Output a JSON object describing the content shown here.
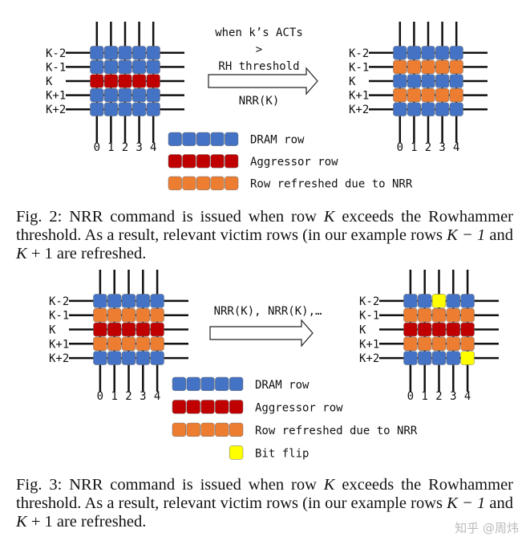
{
  "colors": {
    "dram": "#4472c4",
    "aggressor": "#c00000",
    "refreshed": "#ed7d31",
    "bitflip": "#ffff00",
    "line": "#111111"
  },
  "row_labels": [
    "K-2",
    "K-1",
    "K",
    "K+1",
    "K+2"
  ],
  "col_labels": [
    "0",
    "1",
    "2",
    "3",
    "4"
  ],
  "fig2": {
    "arrow_text": [
      "when k’s ACTs",
      ">",
      "RH threshold"
    ],
    "arrow_below": "NRR(K)",
    "left_grid": [
      [
        "D",
        "D",
        "D",
        "D",
        "D"
      ],
      [
        "D",
        "D",
        "D",
        "D",
        "D"
      ],
      [
        "A",
        "A",
        "A",
        "A",
        "A"
      ],
      [
        "D",
        "D",
        "D",
        "D",
        "D"
      ],
      [
        "D",
        "D",
        "D",
        "D",
        "D"
      ]
    ],
    "right_grid": [
      [
        "D",
        "D",
        "D",
        "D",
        "D"
      ],
      [
        "R",
        "R",
        "R",
        "R",
        "R"
      ],
      [
        "D",
        "D",
        "D",
        "D",
        "D"
      ],
      [
        "R",
        "R",
        "R",
        "R",
        "R"
      ],
      [
        "D",
        "D",
        "D",
        "D",
        "D"
      ]
    ],
    "legend": [
      {
        "code": "D",
        "label": "DRAM row"
      },
      {
        "code": "A",
        "label": "Aggressor row"
      },
      {
        "code": "R",
        "label": "Row refreshed due to NRR"
      }
    ],
    "caption": [
      {
        "t": "Fig. 2: NRR command is issued when row "
      },
      {
        "t": "K",
        "i": true
      },
      {
        "t": " exceeds the Rowhammer threshold. As a result, relevant victim rows (in our example rows "
      },
      {
        "t": "K − 1",
        "i": true
      },
      {
        "t": " and "
      },
      {
        "t": "K",
        "i": true
      },
      {
        "t": " + 1 are refreshed."
      }
    ]
  },
  "fig3": {
    "arrow_text": [
      "NRR(K), NRR(K),…"
    ],
    "left_grid": [
      [
        "D",
        "D",
        "D",
        "D",
        "D"
      ],
      [
        "R",
        "R",
        "R",
        "R",
        "R"
      ],
      [
        "A",
        "A",
        "A",
        "A",
        "A"
      ],
      [
        "R",
        "R",
        "R",
        "R",
        "R"
      ],
      [
        "D",
        "D",
        "D",
        "D",
        "D"
      ]
    ],
    "right_grid": [
      [
        "D",
        "D",
        "B",
        "D",
        "D"
      ],
      [
        "R",
        "R",
        "R",
        "R",
        "R"
      ],
      [
        "A",
        "A",
        "A",
        "A",
        "A"
      ],
      [
        "R",
        "R",
        "R",
        "R",
        "R"
      ],
      [
        "D",
        "D",
        "D",
        "D",
        "B"
      ]
    ],
    "legend": [
      {
        "code": "D",
        "label": "DRAM row"
      },
      {
        "code": "A",
        "label": "Aggressor row"
      },
      {
        "code": "R",
        "label": "Row refreshed due to NRR"
      },
      {
        "code": "B",
        "label": "Bit flip",
        "single": true
      }
    ],
    "caption": [
      {
        "t": "Fig. 3: NRR command is issued when row "
      },
      {
        "t": "K",
        "i": true
      },
      {
        "t": " exceeds the Rowhammer threshold. As a result, relevant victim rows (in our example rows "
      },
      {
        "t": "K − 1",
        "i": true
      },
      {
        "t": " and "
      },
      {
        "t": "K",
        "i": true
      },
      {
        "t": " + 1 are refreshed."
      }
    ]
  },
  "watermark": "知乎 @周炜"
}
